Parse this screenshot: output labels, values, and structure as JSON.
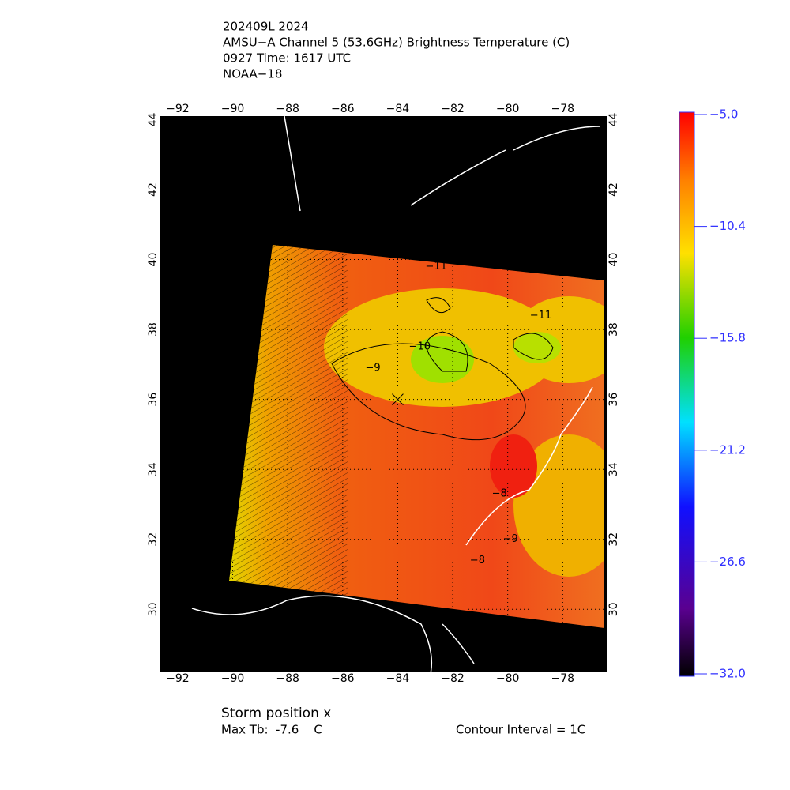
{
  "header": {
    "lines": [
      "202409L 2024",
      "AMSU−A Channel 5 (53.6GHz) Brightness Temperature (C)",
      "0927 Time: 1617 UTC",
      "NOAA−18"
    ]
  },
  "map": {
    "xlim": [
      -92.63,
      -76.4
    ],
    "ylim": [
      28.2,
      44.1
    ],
    "xticks": [
      -92,
      -90,
      -88,
      -86,
      -84,
      -82,
      -80,
      -78
    ],
    "yticks": [
      30,
      32,
      34,
      36,
      38,
      40,
      42,
      44
    ],
    "storm": {
      "lon": -84.0,
      "lat": 36.0
    },
    "contour_labels": [
      {
        "text": "-11",
        "lon": -82.6,
        "lat": 39.8
      },
      {
        "text": "-11",
        "lon": -78.8,
        "lat": 38.4
      },
      {
        "text": "-10",
        "lon": -83.2,
        "lat": 37.5
      },
      {
        "text": "-9",
        "lon": -84.9,
        "lat": 36.9
      },
      {
        "text": "-8",
        "lon": -80.3,
        "lat": 33.3
      },
      {
        "text": "-8",
        "lon": -81.1,
        "lat": 31.4
      },
      {
        "text": "-9",
        "lon": -79.9,
        "lat": 32.0
      }
    ]
  },
  "colorbar": {
    "lim": [
      -32.0,
      -5.0
    ],
    "ticks": [
      {
        "value": -5.0,
        "label": "-5.0"
      },
      -10.4,
      -15.8,
      -21.2,
      -26.6,
      {
        "value": -32.0,
        "label": "-32.0"
      }
    ]
  },
  "footer": {
    "storm": "Storm position x",
    "max_tb": "Max Tb:  -7.6    C",
    "contour": "Contour Interval = 1C"
  }
}
